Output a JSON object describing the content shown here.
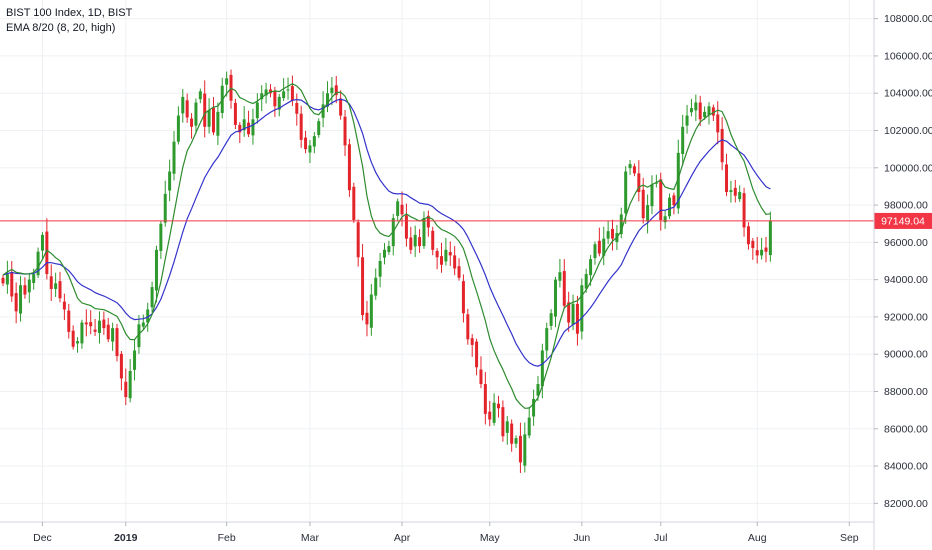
{
  "legend": {
    "title": "BIST 100 Index, 1D, BIST",
    "indicator": "EMA 8/20 (8, 20, high)"
  },
  "colors": {
    "up": "#2e9a2e",
    "down": "#e3242b",
    "ema_fast": "#2e8b2e",
    "ema_slow": "#3333cc",
    "last_price": "#f23645",
    "grid": "#eef0f3"
  },
  "chart_data": {
    "type": "candlestick",
    "title": "BIST 100 Index, 1D, BIST",
    "ylim": [
      81000,
      109000
    ],
    "y_ticks": [
      "82000.00",
      "84000.00",
      "86000.00",
      "88000.00",
      "90000.00",
      "92000.00",
      "94000.00",
      "96000.00",
      "98000.00",
      "100000.00",
      "102000.00",
      "104000.00",
      "106000.00",
      "108000.00"
    ],
    "x_ticks": [
      {
        "label": "Dec",
        "bar": 9,
        "bold": false
      },
      {
        "label": "2019",
        "bar": 28,
        "bold": true
      },
      {
        "label": "Feb",
        "bar": 51,
        "bold": false
      },
      {
        "label": "Mar",
        "bar": 70,
        "bold": false
      },
      {
        "label": "Apr",
        "bar": 91,
        "bold": false
      },
      {
        "label": "May",
        "bar": 111,
        "bold": false
      },
      {
        "label": "Jun",
        "bar": 132,
        "bold": false
      },
      {
        "label": "Jul",
        "bar": 150,
        "bold": false
      },
      {
        "label": "Aug",
        "bar": 172,
        "bold": false
      },
      {
        "label": "Sep",
        "bar": 193,
        "bold": false
      }
    ],
    "last_price": "97149.04",
    "last_value": 97149.04,
    "closes": [
      93800,
      94300,
      93100,
      92300,
      93700,
      93200,
      94000,
      94300,
      95500,
      96400,
      94300,
      93500,
      93800,
      93000,
      92400,
      91200,
      90400,
      90700,
      91700,
      91600,
      91500,
      91200,
      91800,
      91400,
      90800,
      91400,
      89900,
      88700,
      87700,
      89100,
      90200,
      91600,
      91700,
      92400,
      93600,
      95600,
      97000,
      98600,
      99800,
      101400,
      102800,
      103800,
      102700,
      102200,
      103500,
      104100,
      102200,
      103100,
      101900,
      103000,
      104400,
      104800,
      103600,
      102300,
      101900,
      102600,
      101800,
      102600,
      103500,
      104000,
      104200,
      104000,
      103300,
      103800,
      104100,
      104200,
      103600,
      102900,
      101500,
      101000,
      101200,
      101700,
      102500,
      103400,
      104000,
      104300,
      103900,
      102800,
      101200,
      98800,
      97200,
      95200,
      92100,
      91600,
      93200,
      94100,
      95000,
      95600,
      95800,
      97300,
      98200,
      97500,
      96200,
      95600,
      96400,
      95800,
      97300,
      96800,
      95600,
      95200,
      94800,
      95600,
      95300,
      94600,
      94100,
      92200,
      90800,
      90500,
      89300,
      88400,
      86800,
      86500,
      87400,
      87100,
      85600,
      86400,
      85200,
      85500,
      84200,
      85700,
      86600,
      87600,
      88400,
      90200,
      91400,
      92200,
      94000,
      94400,
      92600,
      91700,
      92700,
      91100,
      93700,
      94300,
      95100,
      95900,
      95400,
      96200,
      96600,
      96200,
      96500,
      97500,
      99800,
      100200,
      99700,
      98700,
      97300,
      98000,
      99100,
      99200,
      97200,
      97400,
      98400,
      98000,
      100800,
      102200,
      102800,
      103200,
      103500,
      102600,
      103000,
      103300,
      102800,
      101900,
      100300,
      98700,
      98800,
      98500,
      98700,
      96800,
      95900,
      95700,
      95300,
      95600,
      95500,
      97149
    ],
    "series": [
      {
        "name": "EMA 8",
        "smoothing": "EMA(8) of high"
      },
      {
        "name": "EMA 20",
        "smoothing": "EMA(20) of high"
      }
    ],
    "grid": true,
    "legend_position": "top-left"
  }
}
